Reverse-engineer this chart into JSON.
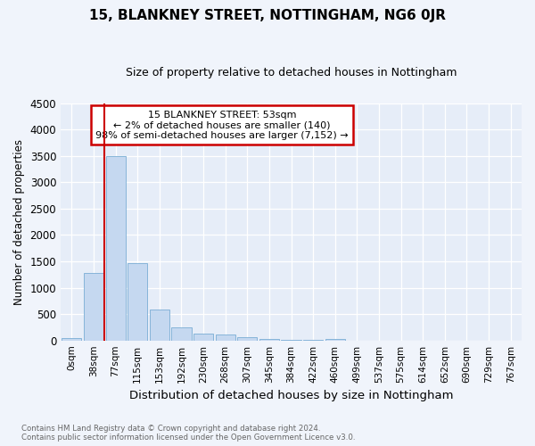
{
  "title": "15, BLANKNEY STREET, NOTTINGHAM, NG6 0JR",
  "subtitle": "Size of property relative to detached houses in Nottingham",
  "xlabel": "Distribution of detached houses by size in Nottingham",
  "ylabel": "Number of detached properties",
  "categories": [
    "0sqm",
    "38sqm",
    "77sqm",
    "115sqm",
    "153sqm",
    "192sqm",
    "230sqm",
    "268sqm",
    "307sqm",
    "345sqm",
    "384sqm",
    "422sqm",
    "460sqm",
    "499sqm",
    "537sqm",
    "575sqm",
    "614sqm",
    "652sqm",
    "690sqm",
    "729sqm",
    "767sqm"
  ],
  "values": [
    50,
    1280,
    3500,
    1460,
    580,
    240,
    135,
    105,
    65,
    30,
    18,
    5,
    35,
    0,
    0,
    0,
    0,
    0,
    0,
    0,
    0
  ],
  "bar_color": "#c5d8f0",
  "bar_edge_color": "#7aadd4",
  "vline_x": 1.5,
  "vline_color": "#cc0000",
  "annotation_text": "15 BLANKNEY STREET: 53sqm\n← 2% of detached houses are smaller (140)\n98% of semi-detached houses are larger (7,152) →",
  "annotation_box_color": "#cc0000",
  "ylim": [
    0,
    4500
  ],
  "yticks": [
    0,
    500,
    1000,
    1500,
    2000,
    2500,
    3000,
    3500,
    4000,
    4500
  ],
  "footer_line1": "Contains HM Land Registry data © Crown copyright and database right 2024.",
  "footer_line2": "Contains public sector information licensed under the Open Government Licence v3.0.",
  "bg_color": "#f0f4fb",
  "plot_bg_color": "#e6edf8",
  "title_fontsize": 11,
  "subtitle_fontsize": 9
}
